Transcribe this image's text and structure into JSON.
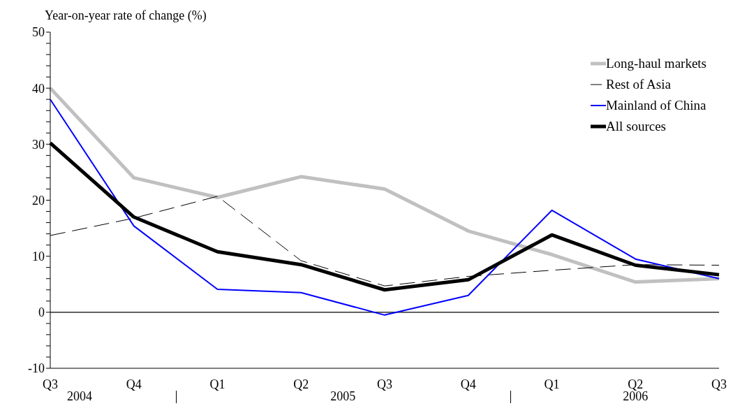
{
  "chart_data": {
    "type": "line",
    "ylabel": "Year-on-year rate of change (%)",
    "categories": [
      "Q3",
      "Q4",
      "Q1",
      "Q2",
      "Q3",
      "Q4",
      "Q1",
      "Q2",
      "Q3"
    ],
    "series": [
      {
        "name": "Long-haul markets",
        "color": "#c0c0c0",
        "values": [
          40,
          24,
          20.5,
          24.2,
          22,
          14.5,
          10.3,
          5.4,
          6
        ]
      },
      {
        "name": "Rest of Asia",
        "color": "#000000",
        "line_style": "dashed",
        "values": [
          13.7,
          16.8,
          20.7,
          9.2,
          4.7,
          6.4,
          7.5,
          8.5,
          8.4
        ]
      },
      {
        "name": "Mainland of China",
        "color": "#0000ff",
        "values": [
          38,
          15.4,
          4.1,
          3.5,
          -0.5,
          3,
          18.2,
          9.5,
          6
        ]
      },
      {
        "name": "All sources",
        "color": "#000000",
        "values": [
          30.2,
          17,
          10.8,
          8.5,
          4,
          5.8,
          13.8,
          8.4,
          6.7
        ]
      }
    ],
    "ylim": [
      -10,
      50
    ],
    "yticks": [
      -10,
      {
        "value": -8,
        "label": null
      },
      {
        "value": -6,
        "label": null
      },
      {
        "value": -4,
        "label": null
      },
      {
        "value": -2,
        "label": null
      },
      0,
      {
        "value": 2,
        "label": null
      },
      {
        "value": 4,
        "label": null
      },
      {
        "value": 6,
        "label": null
      },
      {
        "value": 8,
        "label": null
      },
      10,
      {
        "value": 12,
        "label": null
      },
      {
        "value": 14,
        "label": null
      },
      {
        "value": 16,
        "label": null
      },
      {
        "value": 18,
        "label": null
      },
      20,
      {
        "value": 22,
        "label": null
      },
      {
        "value": 24,
        "label": null
      },
      {
        "value": 26,
        "label": null
      },
      {
        "value": 28,
        "label": null
      },
      30,
      {
        "value": 32,
        "label": null
      },
      {
        "value": 34,
        "label": null
      },
      {
        "value": 36,
        "label": null
      },
      {
        "value": 38,
        "label": null
      },
      40,
      {
        "value": 42,
        "label": null
      },
      {
        "value": 44,
        "label": null
      },
      {
        "value": 46,
        "label": null
      },
      {
        "value": 48,
        "label": null
      },
      50
    ],
    "ref_lines": [
      {
        "axis": "y",
        "value": 0,
        "color": "#000000"
      }
    ],
    "annotations": [
      "2004",
      "2005",
      "2006"
    ],
    "grid": false,
    "legend": "top right",
    "marker": "none",
    "line_style": "solid"
  }
}
